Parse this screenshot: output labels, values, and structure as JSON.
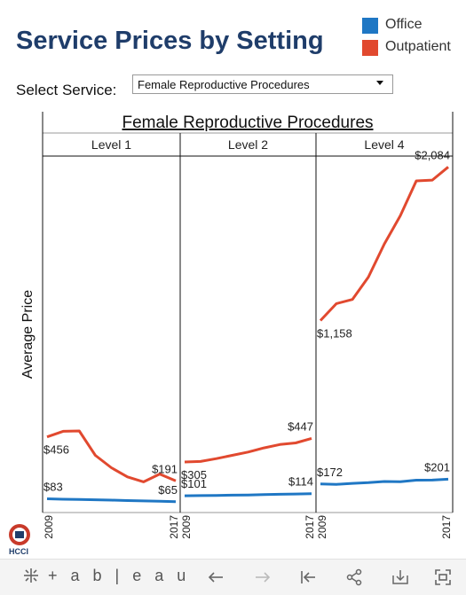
{
  "header": {
    "title": "Service Prices by Setting"
  },
  "legend": {
    "items": [
      {
        "label": "Office",
        "color": "#1f77c4"
      },
      {
        "label": "Outpatient",
        "color": "#e1492f"
      }
    ]
  },
  "filter": {
    "label": "Select Service:",
    "value": "Female Reproductive Procedures"
  },
  "logo": {
    "text": "HCCI",
    "icon": "hcci-logo"
  },
  "toolbar": {
    "brand": "+ a b | e a u",
    "buttons": [
      "undo-icon",
      "redo-icon",
      "revert-icon",
      "share-icon",
      "download-icon",
      "fullscreen-icon"
    ]
  },
  "chart_data": {
    "type": "line",
    "title": "Female Reproductive Procedures",
    "ylabel": "Average Price",
    "ylim": [
      0,
      2150
    ],
    "x": [
      2009,
      2010,
      2011,
      2012,
      2013,
      2014,
      2015,
      2016,
      2017
    ],
    "x_tick_labels": [
      "2009",
      "2017"
    ],
    "panels": [
      {
        "label": "Level 1",
        "series": [
          {
            "name": "Outpatient",
            "values": [
              456,
              490,
              492,
              345,
              270,
              215,
              185,
              232,
              191
            ],
            "start_label": "$456",
            "end_label": "$191"
          },
          {
            "name": "Office",
            "values": [
              83,
              80,
              79,
              77,
              75,
              72,
              70,
              68,
              65
            ],
            "start_label": "$83",
            "end_label": "$65"
          }
        ]
      },
      {
        "label": "Level 2",
        "series": [
          {
            "name": "Outpatient",
            "values": [
              305,
              308,
              325,
              345,
              365,
              390,
              410,
              420,
              447
            ],
            "start_label": "$305",
            "end_label": "$447"
          },
          {
            "name": "Office",
            "values": [
              101,
              102,
              103,
              105,
              106,
              108,
              110,
              112,
              114
            ],
            "start_label": "$101",
            "end_label": "$114"
          }
        ]
      },
      {
        "label": "Level 4",
        "series": [
          {
            "name": "Outpatient",
            "values": [
              1158,
              1260,
              1285,
              1420,
              1620,
              1790,
              2000,
              2005,
              2084
            ],
            "start_label": "$1,158",
            "end_label": "$2,084"
          },
          {
            "name": "Office",
            "values": [
              172,
              170,
              176,
              180,
              187,
              186,
              195,
              196,
              201
            ],
            "start_label": "$172",
            "end_label": "$201"
          }
        ]
      }
    ]
  }
}
